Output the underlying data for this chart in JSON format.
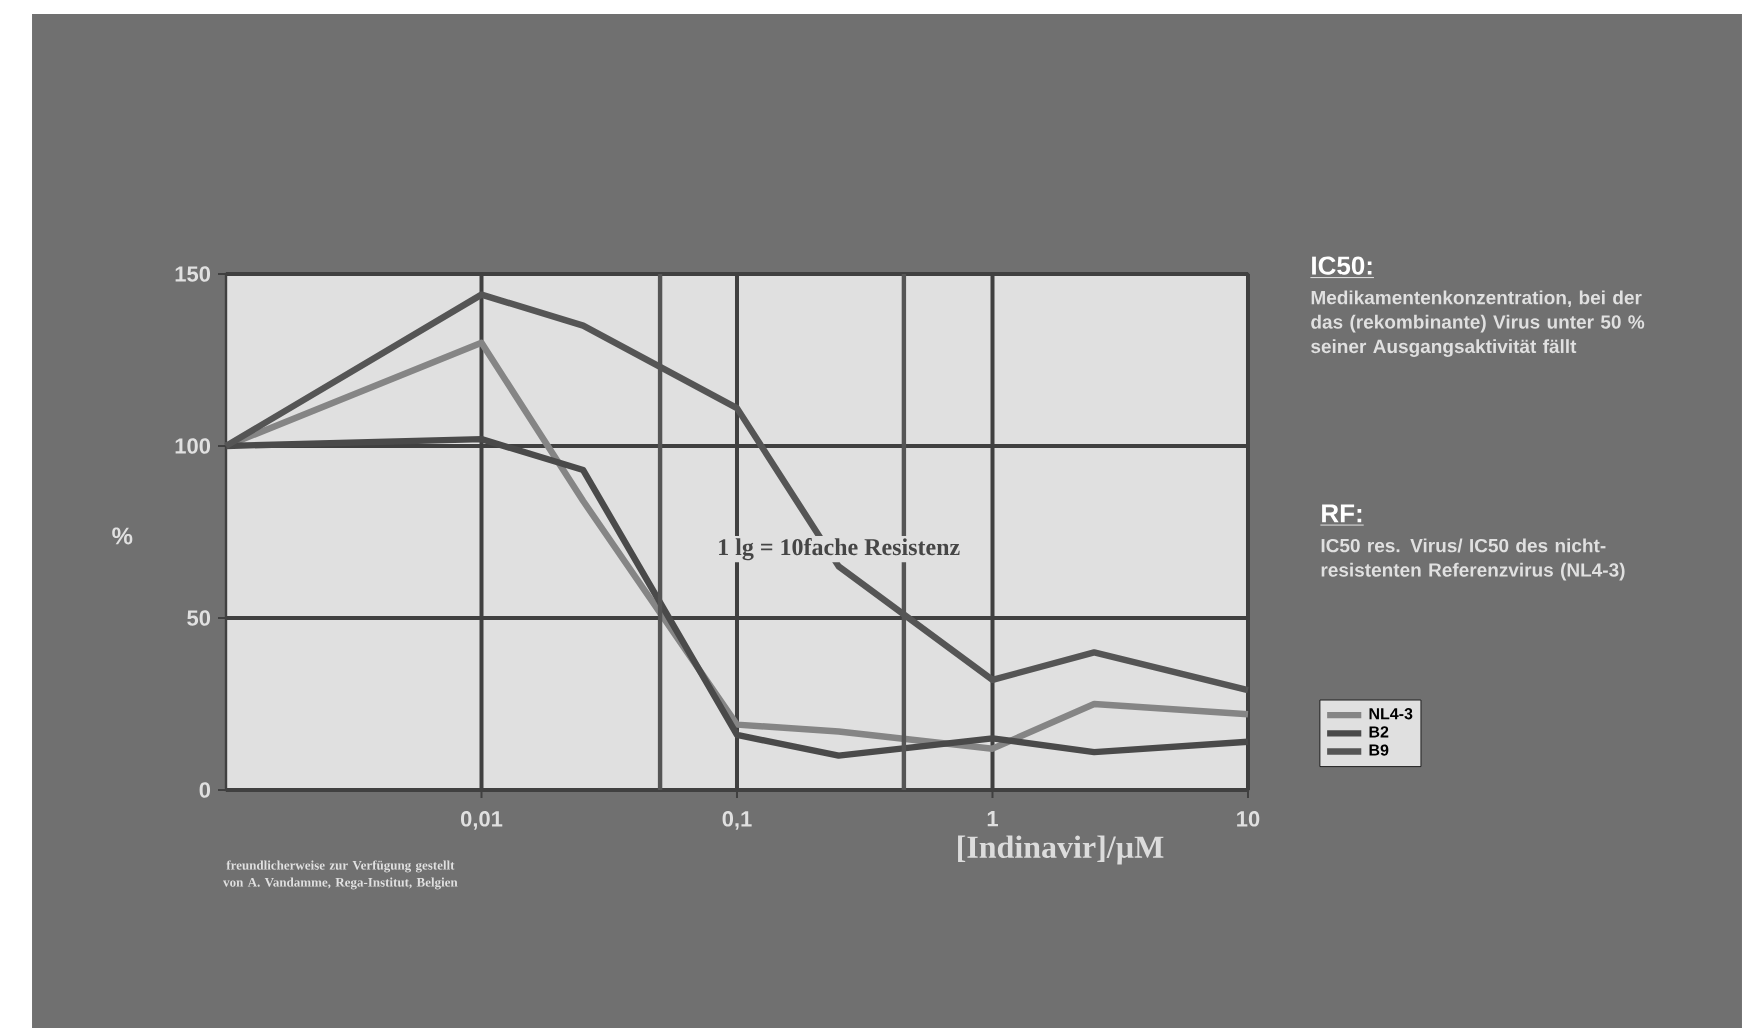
{
  "chart_data": {
    "type": "line",
    "xlabel": "[Indinavir]/µM",
    "ylabel": "%",
    "x": [
      0.001,
      0.01,
      0.025,
      0.1,
      0.25,
      1,
      2.5,
      10
    ],
    "series": [
      {
        "name": "NL4-3",
        "color": "#858585",
        "values": [
          100,
          130,
          84,
          19,
          17,
          12,
          25,
          22
        ]
      },
      {
        "name": "B2",
        "color": "#4a4a4a",
        "values": [
          100,
          102,
          93,
          16,
          10,
          15,
          11,
          14
        ]
      },
      {
        "name": "B9",
        "color": "#555555",
        "values": [
          100,
          144,
          135,
          111,
          65,
          32,
          40,
          29
        ]
      }
    ],
    "log": "x",
    "xlim": [
      0.001,
      10
    ],
    "xticks": [
      {
        "value": 0.01,
        "label": "0,01"
      },
      {
        "value": 0.1,
        "label": "0,1"
      },
      {
        "value": 1,
        "label": "1"
      },
      {
        "value": 10,
        "label": "10"
      }
    ],
    "ylim": [
      0,
      150
    ],
    "yticks": [
      0,
      50,
      100,
      150
    ],
    "grid": true,
    "legend": "right",
    "marker": "none",
    "ref_lines": [
      {
        "axis": "x",
        "value": 0.05,
        "color": "#555555"
      },
      {
        "axis": "x",
        "value": 0.45,
        "color": "#555555"
      }
    ],
    "annotations": [
      "IC50:",
      "Medikamentenkonzentration, bei der das (rekombinante) Virus unter 50 % seiner Ausgangsaktivität fällt",
      "RF:",
      "IC50 res. Virus/ IC50 des nicht-resistenten Referenzvirus (NL4-3)",
      "freundlicherweise zur Verfügung gestellt von A. Vandamme, Rega-Institut, Belgien",
      {
        "text": "1 lg = 10fache Resistenz",
        "x": 0.25,
        "y": 70
      }
    ]
  }
}
